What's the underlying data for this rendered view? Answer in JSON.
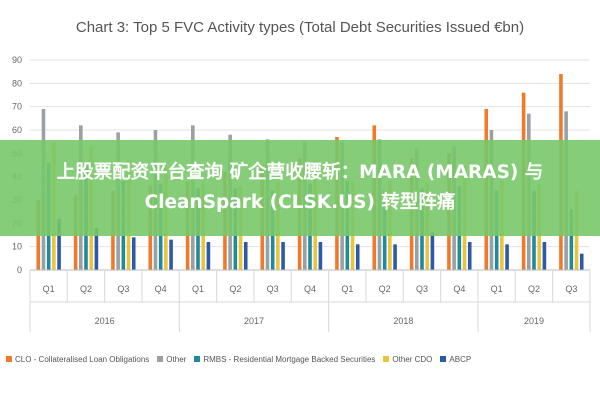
{
  "chart_data": {
    "type": "bar",
    "title": "Chart 3: Top 5 FVC Activity types (Total Debt Securities Issued €bn)",
    "xlabel": "",
    "ylabel": "",
    "ylim": [
      0,
      90
    ],
    "yticks": [
      "0",
      "10",
      "20",
      "30",
      "40",
      "50",
      "60",
      "70",
      "80",
      "90"
    ],
    "grid": true,
    "legend_position": "bottom",
    "categories": [
      "Q1",
      "Q2",
      "Q3",
      "Q4",
      "Q1",
      "Q2",
      "Q3",
      "Q4",
      "Q1",
      "Q2",
      "Q3",
      "Q4",
      "Q1",
      "Q2",
      "Q3"
    ],
    "year_groups": [
      {
        "label": "2016",
        "count": 4
      },
      {
        "label": "2017",
        "count": 4
      },
      {
        "label": "2018",
        "count": 4
      },
      {
        "label": "2019",
        "count": 3
      }
    ],
    "series": [
      {
        "name": "CLO - Collateralised Loan Obligations",
        "color": "#f07a2b",
        "values": [
          30,
          32,
          34,
          36,
          38,
          42,
          45,
          48,
          57,
          62,
          48,
          50,
          69,
          76,
          84
        ]
      },
      {
        "name": "Other",
        "color": "#9aa0a6",
        "values": [
          69,
          62,
          59,
          60,
          62,
          58,
          56,
          55,
          55,
          56,
          52,
          53,
          60,
          67,
          68
        ]
      },
      {
        "name": "RMBS - Residential Mortgage Backed Securities",
        "color": "#1f8a9e",
        "values": [
          46,
          45,
          38,
          37,
          35,
          35,
          34,
          37,
          38,
          34,
          35,
          36,
          34,
          34,
          26
        ]
      },
      {
        "name": "Other CDO",
        "color": "#e9c53a",
        "values": [
          55,
          53,
          47,
          44,
          38,
          36,
          38,
          47,
          38,
          38,
          37,
          45,
          38,
          37,
          34
        ]
      },
      {
        "name": "ABCP",
        "color": "#2b5aa8",
        "values": [
          22,
          18,
          14,
          13,
          12,
          12,
          12,
          12,
          11,
          11,
          16,
          12,
          11,
          12,
          7
        ]
      }
    ]
  },
  "overlay": {
    "text": "上股票配资平台查询 矿企营收腰斩：MARA (MARAS) 与 CleanSpark (CLSK.US) 转型阵痛"
  }
}
